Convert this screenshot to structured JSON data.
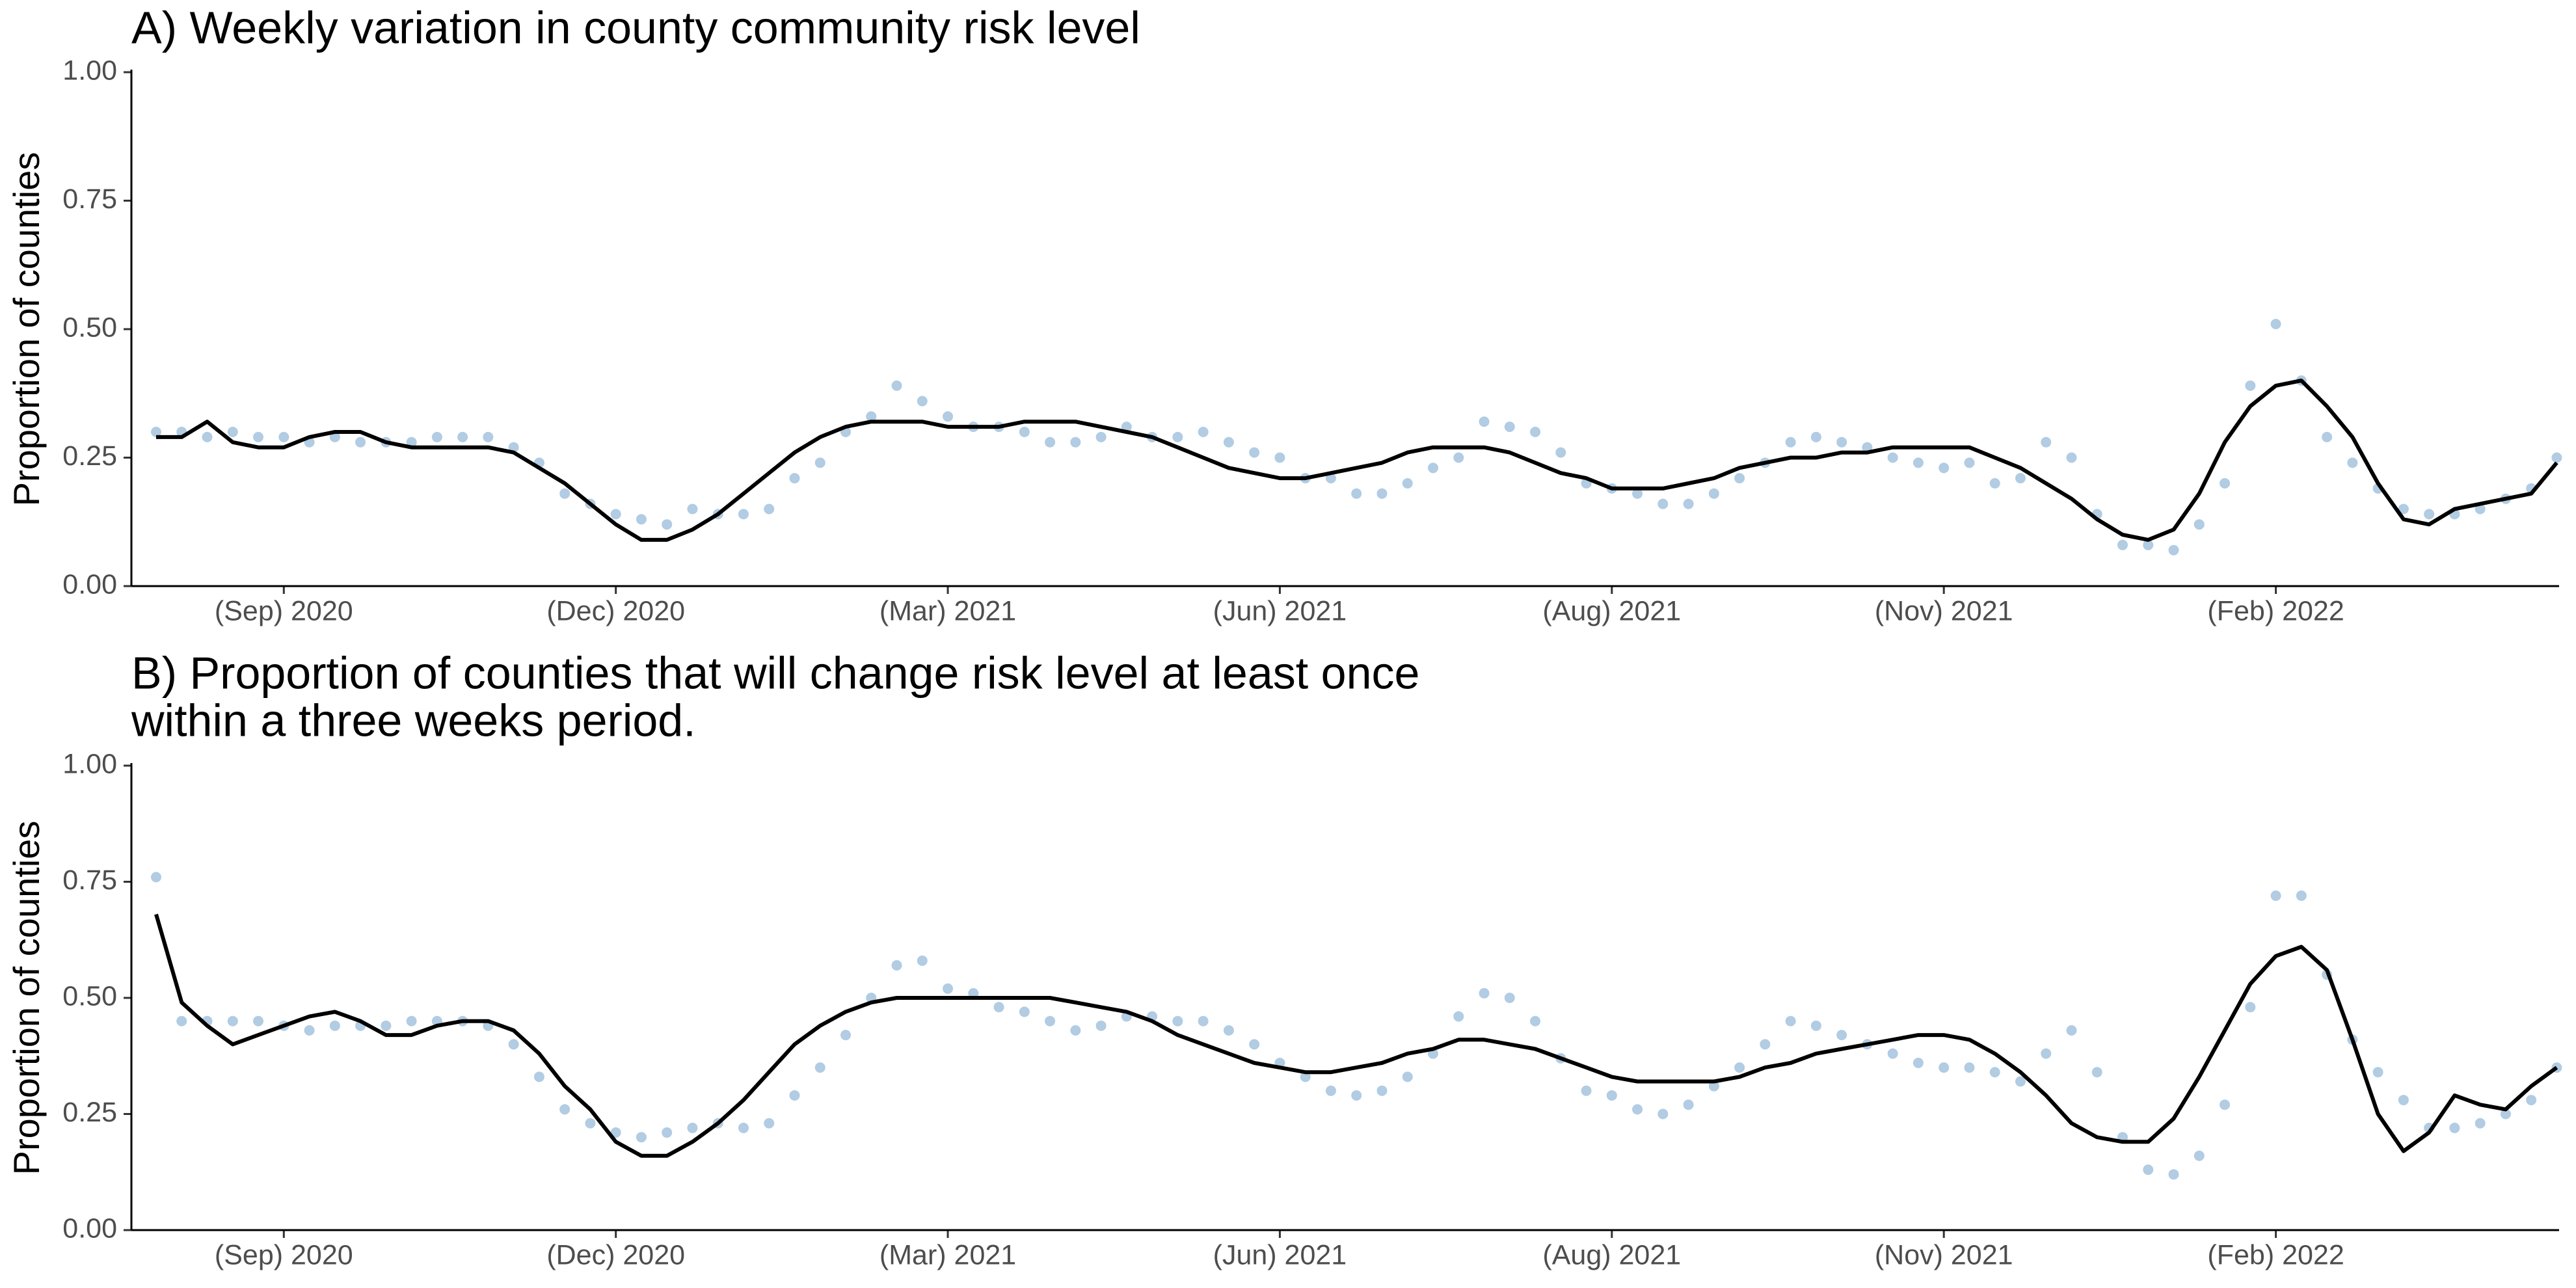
{
  "chart_data": [
    {
      "type": "line",
      "title": [
        "A) Weekly variation in county community risk level"
      ],
      "ylabel": "Proportion of counties",
      "categories": [
        null,
        null,
        null,
        null,
        null,
        "(Sep) 2020",
        null,
        null,
        null,
        null,
        null,
        null,
        null,
        null,
        null,
        null,
        null,
        null,
        "(Dec) 2020",
        null,
        null,
        null,
        null,
        null,
        null,
        null,
        null,
        null,
        null,
        null,
        null,
        "(Mar) 2021",
        null,
        null,
        null,
        null,
        null,
        null,
        null,
        null,
        null,
        null,
        null,
        null,
        "(Jun) 2021",
        null,
        null,
        null,
        null,
        null,
        null,
        null,
        null,
        null,
        null,
        null,
        null,
        "(Aug) 2021",
        null,
        null,
        null,
        null,
        null,
        null,
        null,
        null,
        null,
        null,
        null,
        null,
        "(Nov) 2021",
        null,
        null,
        null,
        null,
        null,
        null,
        null,
        null,
        null,
        null,
        null,
        null,
        "(Feb) 2022",
        null,
        null,
        null,
        null,
        null,
        null,
        null,
        null,
        null,
        null,
        null
      ],
      "ylim": [
        0,
        1
      ],
      "yticks": [
        {
          "value": 0,
          "label": "0.00"
        },
        {
          "value": 0.25,
          "label": "0.25"
        },
        {
          "value": 0.5,
          "label": "0.50"
        },
        {
          "value": 0.75,
          "label": "0.75"
        },
        {
          "value": 1,
          "label": "1.00"
        }
      ],
      "grid": false,
      "series": [
        {
          "style": "points",
          "color": "#9dbfdc",
          "values": [
            0.3,
            0.3,
            0.29,
            0.3,
            0.29,
            0.29,
            0.28,
            0.29,
            0.28,
            0.28,
            0.28,
            0.29,
            0.29,
            0.29,
            0.27,
            0.24,
            0.18,
            0.16,
            0.14,
            0.13,
            0.12,
            0.15,
            0.14,
            0.14,
            0.15,
            0.21,
            0.24,
            0.3,
            0.33,
            0.39,
            0.36,
            0.33,
            0.31,
            0.31,
            0.3,
            0.28,
            0.28,
            0.29,
            0.31,
            0.29,
            0.29,
            0.3,
            0.28,
            0.26,
            0.25,
            0.21,
            0.21,
            0.18,
            0.18,
            0.2,
            0.23,
            0.25,
            0.32,
            0.31,
            0.3,
            0.26,
            0.2,
            0.19,
            0.18,
            0.16,
            0.16,
            0.18,
            0.21,
            0.24,
            0.28,
            0.29,
            0.28,
            0.27,
            0.25,
            0.24,
            0.23,
            0.24,
            0.2,
            0.21,
            0.28,
            0.25,
            0.14,
            0.08,
            0.08,
            0.07,
            0.12,
            0.2,
            0.39,
            0.51,
            0.4,
            0.29,
            0.24,
            0.19,
            0.15,
            0.14,
            0.14,
            0.15,
            0.17,
            0.19,
            0.25
          ]
        },
        {
          "style": "line",
          "color": "#000000",
          "values": [
            0.29,
            0.29,
            0.32,
            0.28,
            0.27,
            0.27,
            0.29,
            0.3,
            0.3,
            0.28,
            0.27,
            0.27,
            0.27,
            0.27,
            0.26,
            0.23,
            0.2,
            0.16,
            0.12,
            0.09,
            0.09,
            0.11,
            0.14,
            0.18,
            0.22,
            0.26,
            0.29,
            0.31,
            0.32,
            0.32,
            0.32,
            0.31,
            0.31,
            0.31,
            0.32,
            0.32,
            0.32,
            0.31,
            0.3,
            0.29,
            0.27,
            0.25,
            0.23,
            0.22,
            0.21,
            0.21,
            0.22,
            0.23,
            0.24,
            0.26,
            0.27,
            0.27,
            0.27,
            0.26,
            0.24,
            0.22,
            0.21,
            0.19,
            0.19,
            0.19,
            0.2,
            0.21,
            0.23,
            0.24,
            0.25,
            0.25,
            0.26,
            0.26,
            0.27,
            0.27,
            0.27,
            0.27,
            0.25,
            0.23,
            0.2,
            0.17,
            0.13,
            0.1,
            0.09,
            0.11,
            0.18,
            0.28,
            0.35,
            0.39,
            0.4,
            0.35,
            0.29,
            0.2,
            0.13,
            0.12,
            0.15,
            0.16,
            0.17,
            0.18,
            0.24
          ]
        }
      ]
    },
    {
      "type": "line",
      "title": [
        "B) Proportion of counties that will change risk level at least once",
        "within a three weeks period."
      ],
      "ylabel": "Proportion of counties",
      "categories": [
        null,
        null,
        null,
        null,
        null,
        "(Sep) 2020",
        null,
        null,
        null,
        null,
        null,
        null,
        null,
        null,
        null,
        null,
        null,
        null,
        "(Dec) 2020",
        null,
        null,
        null,
        null,
        null,
        null,
        null,
        null,
        null,
        null,
        null,
        null,
        "(Mar) 2021",
        null,
        null,
        null,
        null,
        null,
        null,
        null,
        null,
        null,
        null,
        null,
        null,
        "(Jun) 2021",
        null,
        null,
        null,
        null,
        null,
        null,
        null,
        null,
        null,
        null,
        null,
        null,
        "(Aug) 2021",
        null,
        null,
        null,
        null,
        null,
        null,
        null,
        null,
        null,
        null,
        null,
        null,
        "(Nov) 2021",
        null,
        null,
        null,
        null,
        null,
        null,
        null,
        null,
        null,
        null,
        null,
        null,
        "(Feb) 2022",
        null,
        null,
        null,
        null,
        null,
        null,
        null,
        null,
        null,
        null,
        null
      ],
      "ylim": [
        0,
        1
      ],
      "yticks": [
        {
          "value": 0,
          "label": "0.00"
        },
        {
          "value": 0.25,
          "label": "0.25"
        },
        {
          "value": 0.5,
          "label": "0.50"
        },
        {
          "value": 0.75,
          "label": "0.75"
        },
        {
          "value": 1,
          "label": "1.00"
        }
      ],
      "grid": false,
      "series": [
        {
          "style": "points",
          "color": "#9dbfdc",
          "values": [
            0.76,
            0.45,
            0.45,
            0.45,
            0.45,
            0.44,
            0.43,
            0.44,
            0.44,
            0.44,
            0.45,
            0.45,
            0.45,
            0.44,
            0.4,
            0.33,
            0.26,
            0.23,
            0.21,
            0.2,
            0.21,
            0.22,
            0.23,
            0.22,
            0.23,
            0.29,
            0.35,
            0.42,
            0.5,
            0.57,
            0.58,
            0.52,
            0.51,
            0.48,
            0.47,
            0.45,
            0.43,
            0.44,
            0.46,
            0.46,
            0.45,
            0.45,
            0.43,
            0.4,
            0.36,
            0.33,
            0.3,
            0.29,
            0.3,
            0.33,
            0.38,
            0.46,
            0.51,
            0.5,
            0.45,
            0.37,
            0.3,
            0.29,
            0.26,
            0.25,
            0.27,
            0.31,
            0.35,
            0.4,
            0.45,
            0.44,
            0.42,
            0.4,
            0.38,
            0.36,
            0.35,
            0.35,
            0.34,
            0.32,
            0.38,
            0.43,
            0.34,
            0.2,
            0.13,
            0.12,
            0.16,
            0.27,
            0.48,
            0.72,
            0.72,
            0.55,
            0.41,
            0.34,
            0.28,
            0.22,
            0.22,
            0.23,
            0.25,
            0.28,
            0.35
          ]
        },
        {
          "style": "line",
          "color": "#000000",
          "values": [
            0.68,
            0.49,
            0.44,
            0.4,
            0.42,
            0.44,
            0.46,
            0.47,
            0.45,
            0.42,
            0.42,
            0.44,
            0.45,
            0.45,
            0.43,
            0.38,
            0.31,
            0.26,
            0.19,
            0.16,
            0.16,
            0.19,
            0.23,
            0.28,
            0.34,
            0.4,
            0.44,
            0.47,
            0.49,
            0.5,
            0.5,
            0.5,
            0.5,
            0.5,
            0.5,
            0.5,
            0.49,
            0.48,
            0.47,
            0.45,
            0.42,
            0.4,
            0.38,
            0.36,
            0.35,
            0.34,
            0.34,
            0.35,
            0.36,
            0.38,
            0.39,
            0.41,
            0.41,
            0.4,
            0.39,
            0.37,
            0.35,
            0.33,
            0.32,
            0.32,
            0.32,
            0.32,
            0.33,
            0.35,
            0.36,
            0.38,
            0.39,
            0.4,
            0.41,
            0.42,
            0.42,
            0.41,
            0.38,
            0.34,
            0.29,
            0.23,
            0.2,
            0.19,
            0.19,
            0.24,
            0.33,
            0.43,
            0.53,
            0.59,
            0.61,
            0.56,
            0.41,
            0.25,
            0.17,
            0.21,
            0.29,
            0.27,
            0.26,
            0.31,
            0.35
          ]
        }
      ]
    }
  ]
}
